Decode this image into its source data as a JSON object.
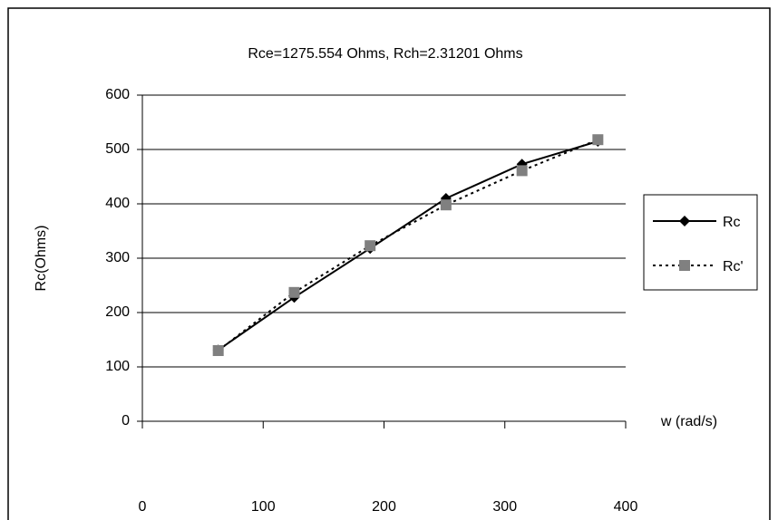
{
  "chart_data": {
    "type": "line",
    "title": "Rce=1275.554 Ohms, Rch=2.31201 Ohms",
    "y_label": "Rc(Ohms)",
    "x_label": "w (rad/s)",
    "x": [
      62.8,
      125.7,
      188.5,
      251.3,
      314.2,
      377
    ],
    "series": [
      {
        "name": "Rc",
        "color": "#000000",
        "line_style": "solid",
        "marker": "diamond",
        "marker_color": "#000000",
        "values": [
          131,
          228,
          318,
          410,
          473,
          515
        ]
      },
      {
        "name": "Rc'",
        "color": "#000000",
        "line_style": "dotted",
        "marker": "square",
        "marker_color": "#808080",
        "values": [
          130,
          237,
          323,
          398,
          461,
          518
        ]
      }
    ],
    "xlim": [
      0,
      400
    ],
    "xticks": [
      0,
      100,
      200,
      300,
      400
    ],
    "ylim": [
      0,
      600
    ],
    "yticks": [
      0,
      100,
      200,
      300,
      400,
      500,
      600
    ],
    "grid": true,
    "legend": "right"
  }
}
